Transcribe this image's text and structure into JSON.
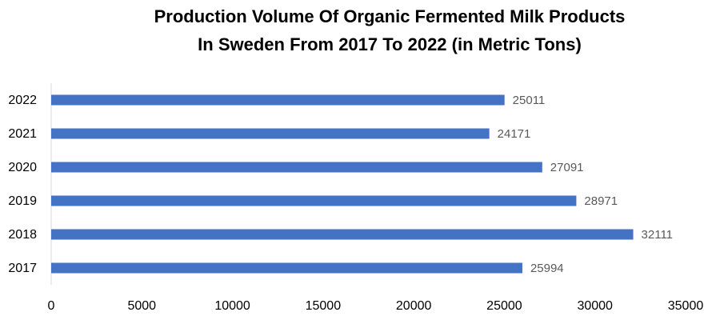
{
  "chart_data": {
    "type": "bar",
    "orientation": "horizontal",
    "title": [
      "Production Volume Of Organic Fermented Milk Products",
      "In Sweden From 2017 To 2022 (in Metric Tons)"
    ],
    "categories": [
      "2022",
      "2021",
      "2020",
      "2019",
      "2018",
      "2017"
    ],
    "values": [
      25011,
      24171,
      27091,
      28971,
      32111,
      25994
    ],
    "color": "#4472c4",
    "xlim": [
      0,
      35000
    ],
    "xticks": [
      0,
      5000,
      10000,
      15000,
      20000,
      25000,
      30000,
      35000
    ],
    "grid": false,
    "data_labels": true
  }
}
